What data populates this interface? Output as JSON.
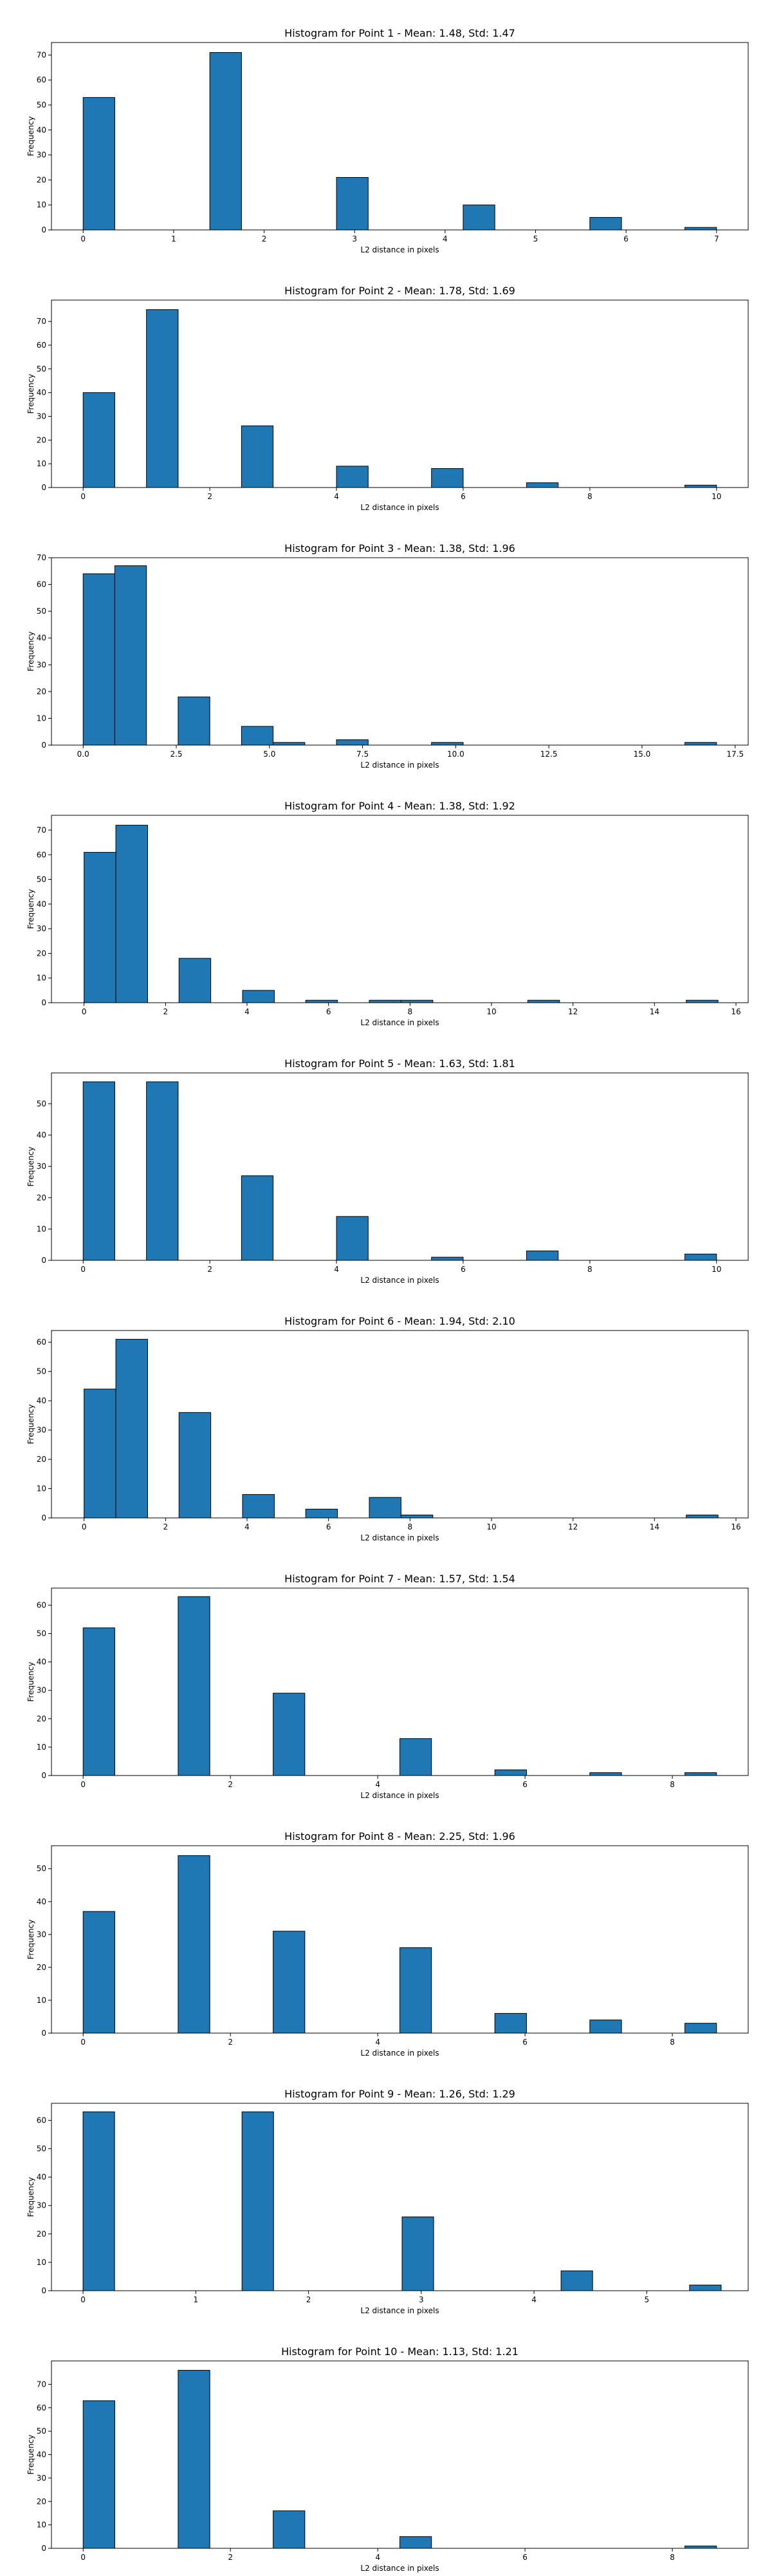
{
  "figure": {
    "background": "#ffffff",
    "bar_color": "#1f77b4",
    "bar_edge": "#000000"
  },
  "chart_data": [
    {
      "type": "bar",
      "title": "Histogram for Point 1 - Mean: 1.48, Std: 1.47",
      "xlabel": "L2 distance in pixels",
      "ylabel": "Frequency",
      "xlim": [
        -0.35,
        7.35
      ],
      "ylim": [
        0,
        75
      ],
      "xticks": [
        0,
        1,
        2,
        3,
        4,
        5,
        6,
        7
      ],
      "xtick_labels": [
        "0",
        "1",
        "2",
        "3",
        "4",
        "5",
        "6",
        "7"
      ],
      "yticks": [
        0,
        10,
        20,
        30,
        40,
        50,
        60,
        70
      ],
      "ytick_labels": [
        "0",
        "10",
        "20",
        "30",
        "40",
        "50",
        "60",
        "70"
      ],
      "bins": [
        {
          "x0": 0,
          "x1": 0.35,
          "value": 53
        },
        {
          "x0": 1.4,
          "x1": 1.75,
          "value": 71
        },
        {
          "x0": 2.8,
          "x1": 3.15,
          "value": 21
        },
        {
          "x0": 4.2,
          "x1": 4.55,
          "value": 10
        },
        {
          "x0": 5.6,
          "x1": 5.95,
          "value": 5
        },
        {
          "x0": 6.65,
          "x1": 7.0,
          "value": 1
        }
      ]
    },
    {
      "type": "bar",
      "title": "Histogram for Point 2 - Mean: 1.78, Std: 1.69",
      "xlabel": "L2 distance in pixels",
      "ylabel": "Frequency",
      "xlim": [
        -0.5,
        10.5
      ],
      "ylim": [
        0,
        79
      ],
      "xticks": [
        0,
        2,
        4,
        6,
        8,
        10
      ],
      "xtick_labels": [
        "0",
        "2",
        "4",
        "6",
        "8",
        "10"
      ],
      "yticks": [
        0,
        10,
        20,
        30,
        40,
        50,
        60,
        70
      ],
      "ytick_labels": [
        "0",
        "10",
        "20",
        "30",
        "40",
        "50",
        "60",
        "70"
      ],
      "bins": [
        {
          "x0": 0,
          "x1": 0.5,
          "value": 40
        },
        {
          "x0": 1.0,
          "x1": 1.5,
          "value": 75
        },
        {
          "x0": 2.5,
          "x1": 3.0,
          "value": 26
        },
        {
          "x0": 4.0,
          "x1": 4.5,
          "value": 9
        },
        {
          "x0": 5.5,
          "x1": 6.0,
          "value": 8
        },
        {
          "x0": 7.0,
          "x1": 7.5,
          "value": 2
        },
        {
          "x0": 9.5,
          "x1": 10.0,
          "value": 1
        }
      ]
    },
    {
      "type": "bar",
      "title": "Histogram for Point 3 - Mean: 1.38, Std: 1.96",
      "xlabel": "L2 distance in pixels",
      "ylabel": "Frequency",
      "xlim": [
        -0.85,
        17.85
      ],
      "ylim": [
        0,
        70
      ],
      "xticks": [
        0,
        2.5,
        5,
        7.5,
        10,
        12.5,
        15,
        17.5
      ],
      "xtick_labels": [
        "0.0",
        "2.5",
        "5.0",
        "7.5",
        "10.0",
        "12.5",
        "15.0",
        "17.5"
      ],
      "yticks": [
        0,
        10,
        20,
        30,
        40,
        50,
        60,
        70
      ],
      "ytick_labels": [
        "0",
        "10",
        "20",
        "30",
        "40",
        "50",
        "60",
        "70"
      ],
      "bins": [
        {
          "x0": 0,
          "x1": 0.85,
          "value": 64
        },
        {
          "x0": 0.85,
          "x1": 1.7,
          "value": 67
        },
        {
          "x0": 2.55,
          "x1": 3.4,
          "value": 18
        },
        {
          "x0": 4.25,
          "x1": 5.1,
          "value": 7
        },
        {
          "x0": 5.1,
          "x1": 5.95,
          "value": 1
        },
        {
          "x0": 6.8,
          "x1": 7.65,
          "value": 2
        },
        {
          "x0": 9.35,
          "x1": 10.2,
          "value": 1
        },
        {
          "x0": 16.15,
          "x1": 17.0,
          "value": 1
        }
      ]
    },
    {
      "type": "bar",
      "title": "Histogram for Point 4 - Mean: 1.38, Std: 1.92",
      "xlabel": "L2 distance in pixels",
      "ylabel": "Frequency",
      "xlim": [
        -0.8,
        16.3
      ],
      "ylim": [
        0,
        76
      ],
      "xticks": [
        0,
        2,
        4,
        6,
        8,
        10,
        12,
        14,
        16
      ],
      "xtick_labels": [
        "0",
        "2",
        "4",
        "6",
        "8",
        "10",
        "12",
        "14",
        "16"
      ],
      "yticks": [
        0,
        10,
        20,
        30,
        40,
        50,
        60,
        70
      ],
      "ytick_labels": [
        "0",
        "10",
        "20",
        "30",
        "40",
        "50",
        "60",
        "70"
      ],
      "bins": [
        {
          "x0": 0,
          "x1": 0.78,
          "value": 61
        },
        {
          "x0": 0.78,
          "x1": 1.56,
          "value": 72
        },
        {
          "x0": 2.33,
          "x1": 3.11,
          "value": 18
        },
        {
          "x0": 3.89,
          "x1": 4.67,
          "value": 5
        },
        {
          "x0": 5.44,
          "x1": 6.22,
          "value": 1
        },
        {
          "x0": 7.0,
          "x1": 7.78,
          "value": 1
        },
        {
          "x0": 7.78,
          "x1": 8.56,
          "value": 1
        },
        {
          "x0": 10.89,
          "x1": 11.67,
          "value": 1
        },
        {
          "x0": 14.78,
          "x1": 15.56,
          "value": 1
        }
      ]
    },
    {
      "type": "bar",
      "title": "Histogram for Point 5 - Mean: 1.63, Std: 1.81",
      "xlabel": "L2 distance in pixels",
      "ylabel": "Frequency",
      "xlim": [
        -0.5,
        10.5
      ],
      "ylim": [
        0,
        59.85
      ],
      "xticks": [
        0,
        2,
        4,
        6,
        8,
        10
      ],
      "xtick_labels": [
        "0",
        "2",
        "4",
        "6",
        "8",
        "10"
      ],
      "yticks": [
        0,
        10,
        20,
        30,
        40,
        50
      ],
      "ytick_labels": [
        "0",
        "10",
        "20",
        "30",
        "40",
        "50"
      ],
      "bins": [
        {
          "x0": 0,
          "x1": 0.5,
          "value": 57
        },
        {
          "x0": 1.0,
          "x1": 1.5,
          "value": 57
        },
        {
          "x0": 2.5,
          "x1": 3.0,
          "value": 27
        },
        {
          "x0": 4.0,
          "x1": 4.5,
          "value": 14
        },
        {
          "x0": 5.5,
          "x1": 6.0,
          "value": 1
        },
        {
          "x0": 7.0,
          "x1": 7.5,
          "value": 3
        },
        {
          "x0": 9.5,
          "x1": 10.0,
          "value": 2
        }
      ]
    },
    {
      "type": "bar",
      "title": "Histogram for Point 6 - Mean: 1.94, Std: 2.10",
      "xlabel": "L2 distance in pixels",
      "ylabel": "Frequency",
      "xlim": [
        -0.8,
        16.3
      ],
      "ylim": [
        0,
        64
      ],
      "xticks": [
        0,
        2,
        4,
        6,
        8,
        10,
        12,
        14,
        16
      ],
      "xtick_labels": [
        "0",
        "2",
        "4",
        "6",
        "8",
        "10",
        "12",
        "14",
        "16"
      ],
      "yticks": [
        0,
        10,
        20,
        30,
        40,
        50,
        60
      ],
      "ytick_labels": [
        "0",
        "10",
        "20",
        "30",
        "40",
        "50",
        "60"
      ],
      "bins": [
        {
          "x0": 0,
          "x1": 0.78,
          "value": 44
        },
        {
          "x0": 0.78,
          "x1": 1.56,
          "value": 61
        },
        {
          "x0": 2.33,
          "x1": 3.11,
          "value": 36
        },
        {
          "x0": 3.89,
          "x1": 4.67,
          "value": 8
        },
        {
          "x0": 5.44,
          "x1": 6.22,
          "value": 3
        },
        {
          "x0": 7.0,
          "x1": 7.78,
          "value": 7
        },
        {
          "x0": 7.78,
          "x1": 8.56,
          "value": 1
        },
        {
          "x0": 14.78,
          "x1": 15.56,
          "value": 1
        }
      ]
    },
    {
      "type": "bar",
      "title": "Histogram for Point 7 - Mean: 1.57, Std: 1.54",
      "xlabel": "L2 distance in pixels",
      "ylabel": "Frequency",
      "xlim": [
        -0.43,
        9.03
      ],
      "ylim": [
        0,
        66
      ],
      "xticks": [
        0,
        2,
        4,
        6,
        8
      ],
      "xtick_labels": [
        "0",
        "2",
        "4",
        "6",
        "8"
      ],
      "yticks": [
        0,
        10,
        20,
        30,
        40,
        50,
        60
      ],
      "ytick_labels": [
        "0",
        "10",
        "20",
        "30",
        "40",
        "50",
        "60"
      ],
      "bins": [
        {
          "x0": 0,
          "x1": 0.43,
          "value": 52
        },
        {
          "x0": 1.29,
          "x1": 1.72,
          "value": 63
        },
        {
          "x0": 2.58,
          "x1": 3.01,
          "value": 29
        },
        {
          "x0": 4.3,
          "x1": 4.73,
          "value": 13
        },
        {
          "x0": 5.59,
          "x1": 6.02,
          "value": 2
        },
        {
          "x0": 6.88,
          "x1": 7.31,
          "value": 1
        },
        {
          "x0": 8.17,
          "x1": 8.6,
          "value": 1
        }
      ]
    },
    {
      "type": "bar",
      "title": "Histogram for Point 8 - Mean: 2.25, Std: 1.96",
      "xlabel": "L2 distance in pixels",
      "ylabel": "Frequency",
      "xlim": [
        -0.43,
        9.03
      ],
      "ylim": [
        0,
        57
      ],
      "xticks": [
        0,
        2,
        4,
        6,
        8
      ],
      "xtick_labels": [
        "0",
        "2",
        "4",
        "6",
        "8"
      ],
      "yticks": [
        0,
        10,
        20,
        30,
        40,
        50
      ],
      "ytick_labels": [
        "0",
        "10",
        "20",
        "30",
        "40",
        "50"
      ],
      "bins": [
        {
          "x0": 0,
          "x1": 0.43,
          "value": 37
        },
        {
          "x0": 1.29,
          "x1": 1.72,
          "value": 54
        },
        {
          "x0": 2.58,
          "x1": 3.01,
          "value": 31
        },
        {
          "x0": 4.3,
          "x1": 4.73,
          "value": 26
        },
        {
          "x0": 5.59,
          "x1": 6.02,
          "value": 6
        },
        {
          "x0": 6.88,
          "x1": 7.31,
          "value": 4
        },
        {
          "x0": 8.17,
          "x1": 8.6,
          "value": 3
        }
      ]
    },
    {
      "type": "bar",
      "title": "Histogram for Point 9 - Mean: 1.26, Std: 1.29",
      "xlabel": "L2 distance in pixels",
      "ylabel": "Frequency",
      "xlim": [
        -0.28,
        5.9
      ],
      "ylim": [
        0,
        66
      ],
      "xticks": [
        0,
        1,
        2,
        3,
        4,
        5
      ],
      "xtick_labels": [
        "0",
        "1",
        "2",
        "3",
        "4",
        "5"
      ],
      "yticks": [
        0,
        10,
        20,
        30,
        40,
        50,
        60
      ],
      "ytick_labels": [
        "0",
        "10",
        "20",
        "30",
        "40",
        "50",
        "60"
      ],
      "bins": [
        {
          "x0": 0,
          "x1": 0.28,
          "value": 63
        },
        {
          "x0": 1.41,
          "x1": 1.69,
          "value": 63
        },
        {
          "x0": 2.83,
          "x1": 3.11,
          "value": 26
        },
        {
          "x0": 4.24,
          "x1": 4.52,
          "value": 7
        },
        {
          "x0": 5.38,
          "x1": 5.66,
          "value": 2
        }
      ]
    },
    {
      "type": "bar",
      "title": "Histogram for Point 10 - Mean: 1.13, Std: 1.21",
      "xlabel": "L2 distance in pixels",
      "ylabel": "Frequency",
      "xlim": [
        -0.43,
        9.03
      ],
      "ylim": [
        0,
        80
      ],
      "xticks": [
        0,
        2,
        4,
        6,
        8
      ],
      "xtick_labels": [
        "0",
        "2",
        "4",
        "6",
        "8"
      ],
      "yticks": [
        0,
        10,
        20,
        30,
        40,
        50,
        60,
        70
      ],
      "ytick_labels": [
        "0",
        "10",
        "20",
        "30",
        "40",
        "50",
        "60",
        "70"
      ],
      "bins": [
        {
          "x0": 0,
          "x1": 0.43,
          "value": 63
        },
        {
          "x0": 1.29,
          "x1": 1.72,
          "value": 76
        },
        {
          "x0": 2.58,
          "x1": 3.01,
          "value": 16
        },
        {
          "x0": 4.3,
          "x1": 4.73,
          "value": 5
        },
        {
          "x0": 8.17,
          "x1": 8.6,
          "value": 1
        }
      ]
    }
  ]
}
